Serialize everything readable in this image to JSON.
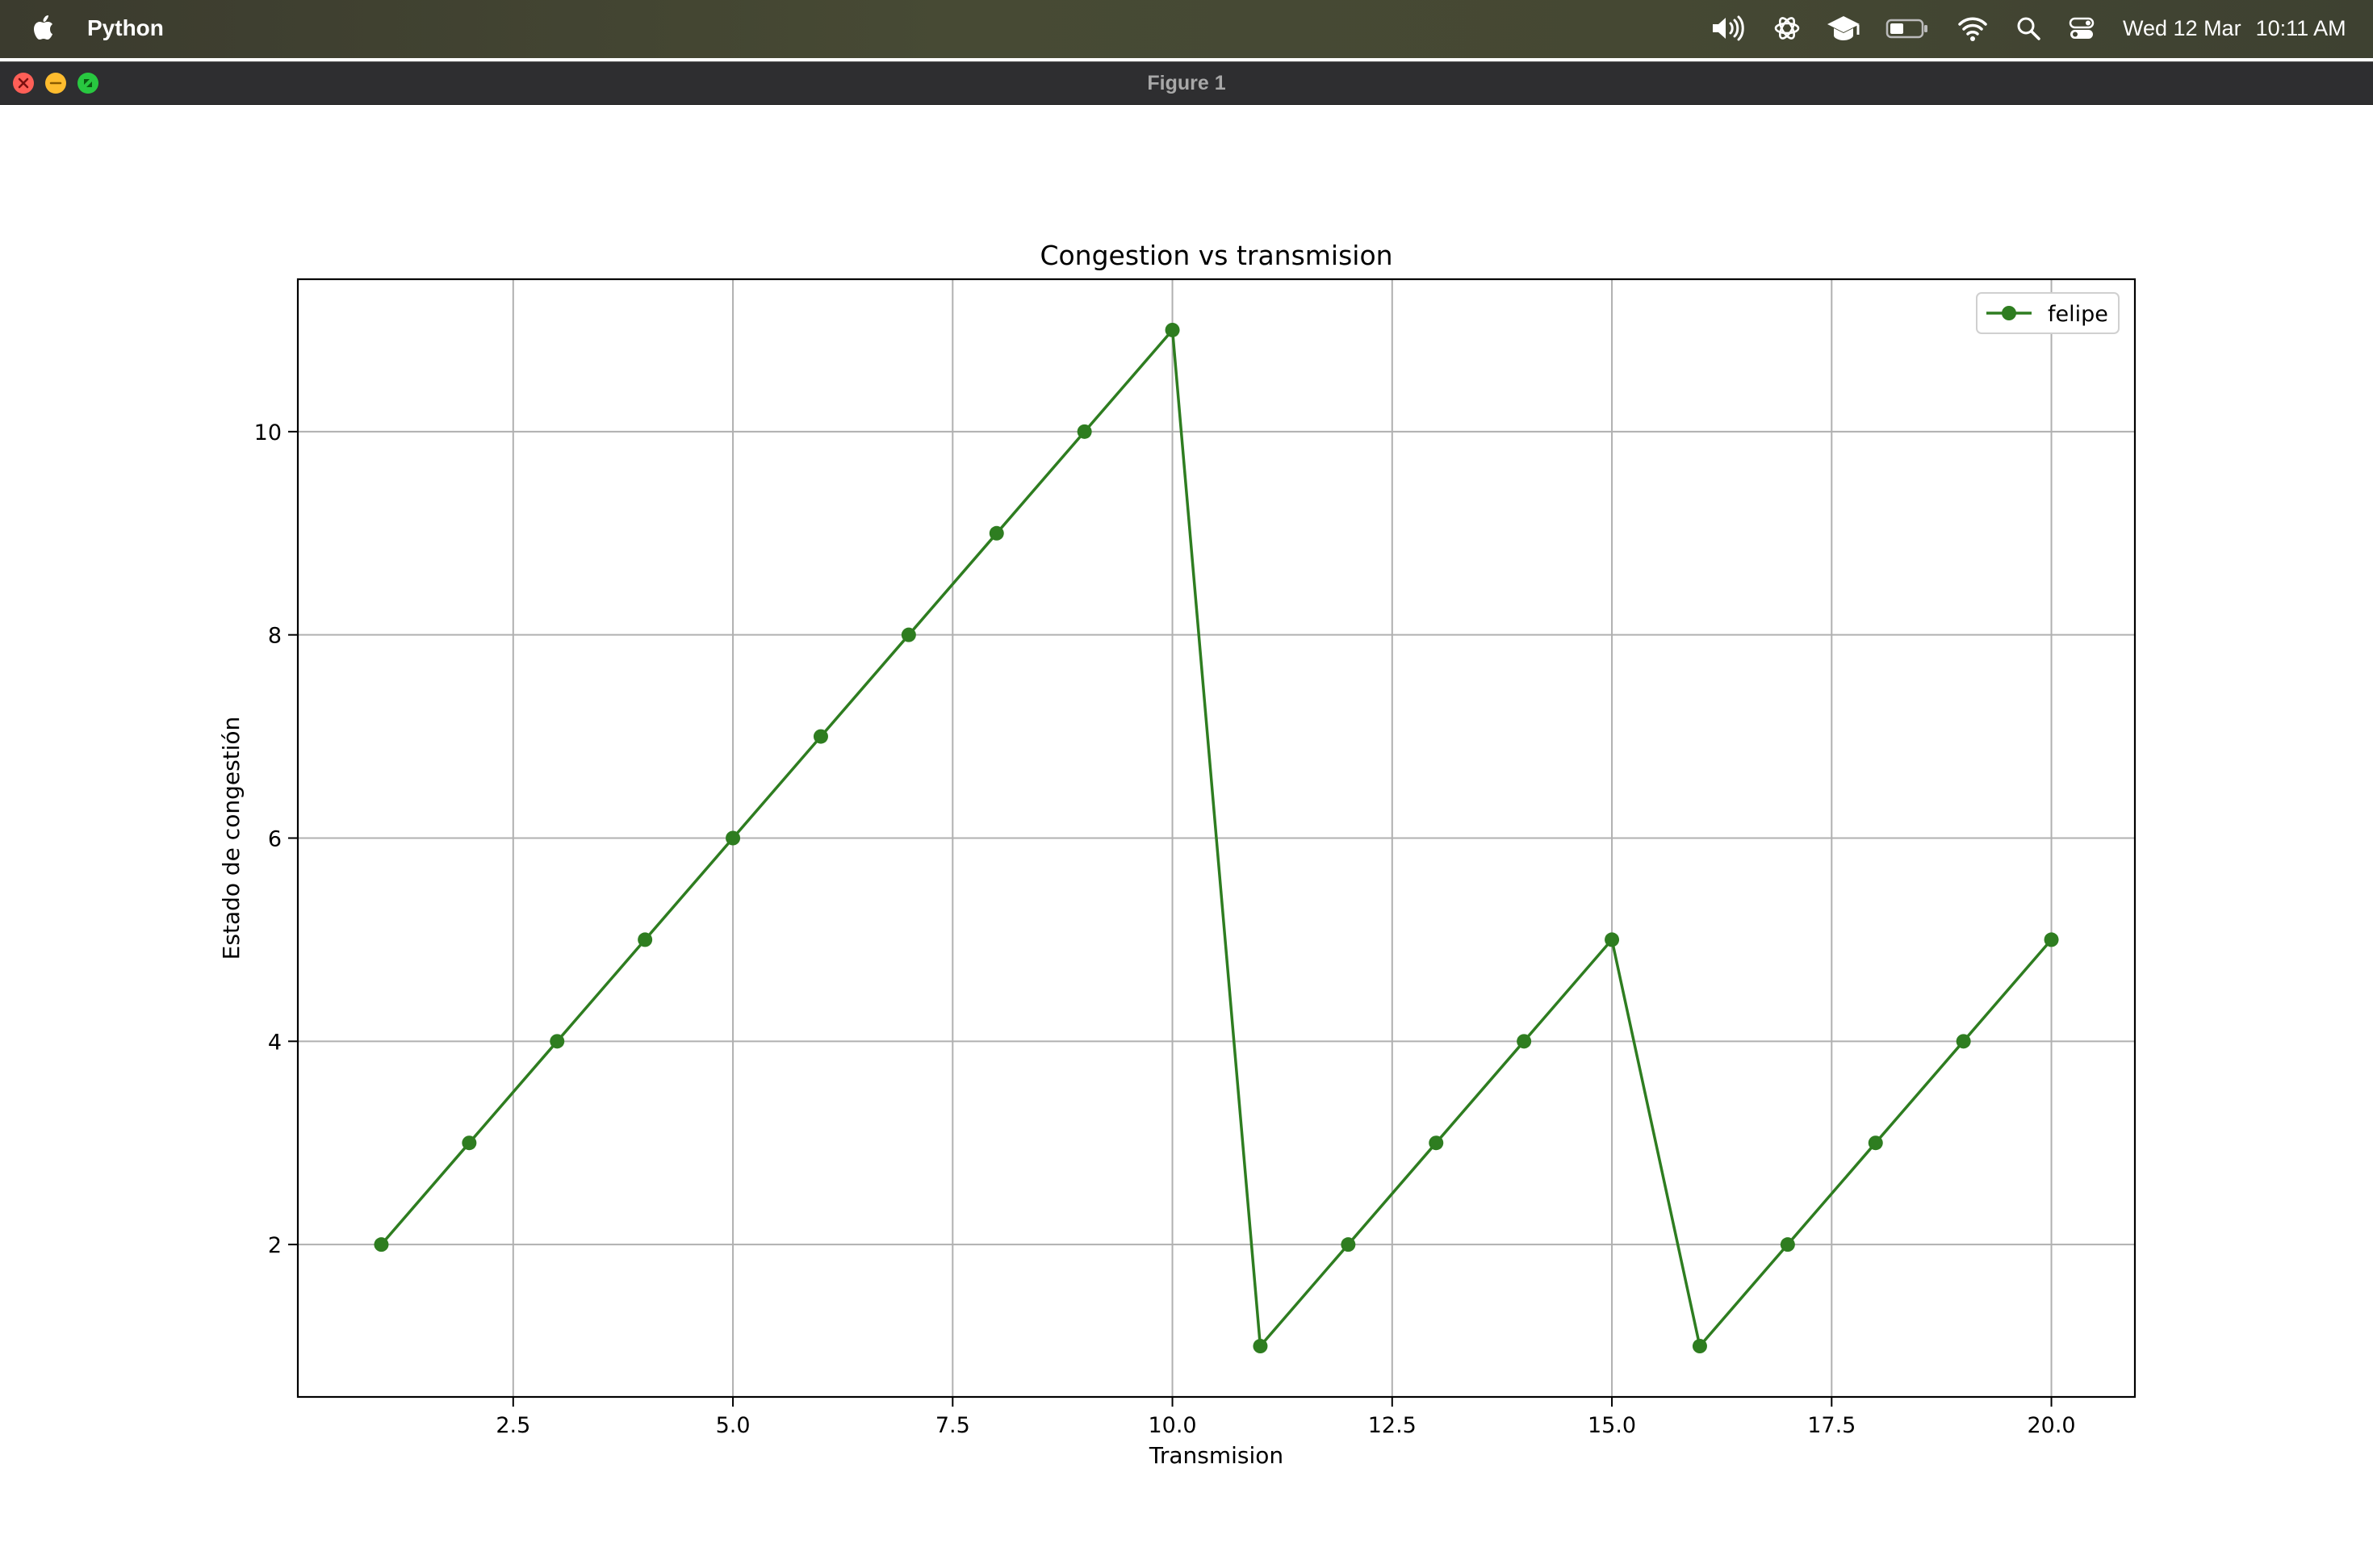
{
  "menubar": {
    "app_name": "Python",
    "icons": [
      "apple-icon",
      "volume-icon",
      "chatgpt-icon",
      "graduation-cap-icon",
      "battery-icon",
      "wifi-icon",
      "search-icon",
      "control-center-icon"
    ],
    "date": "Wed 12 Mar",
    "time": "10:11 AM"
  },
  "window": {
    "title": "Figure 1"
  },
  "colors": {
    "series": "#2e7d20",
    "grid": "#b0b0b0",
    "axes": "#000000"
  },
  "chart_data": {
    "type": "line",
    "title": "Congestion vs transmision",
    "xlabel": "Transmision",
    "ylabel": "Estado de congestión",
    "xlim": [
      0.05,
      20.95
    ],
    "ylim": [
      0.5,
      11.5
    ],
    "xticks": [
      2.5,
      5.0,
      7.5,
      10.0,
      12.5,
      15.0,
      17.5,
      20.0
    ],
    "xtick_labels": [
      "2.5",
      "5.0",
      "7.5",
      "10.0",
      "12.5",
      "15.0",
      "17.5",
      "20.0"
    ],
    "yticks": [
      2,
      4,
      6,
      8,
      10
    ],
    "ytick_labels": [
      "2",
      "4",
      "6",
      "8",
      "10"
    ],
    "grid": true,
    "legend_position": "top-right",
    "series": [
      {
        "name": "felipe",
        "marker": "circle",
        "x": [
          1,
          2,
          3,
          4,
          5,
          6,
          7,
          8,
          9,
          10,
          11,
          12,
          13,
          14,
          15,
          16,
          17,
          18,
          19,
          20
        ],
        "y": [
          2,
          3,
          4,
          5,
          6,
          7,
          8,
          9,
          10,
          11,
          1,
          2,
          3,
          4,
          5,
          1,
          2,
          3,
          4,
          5
        ]
      }
    ]
  }
}
